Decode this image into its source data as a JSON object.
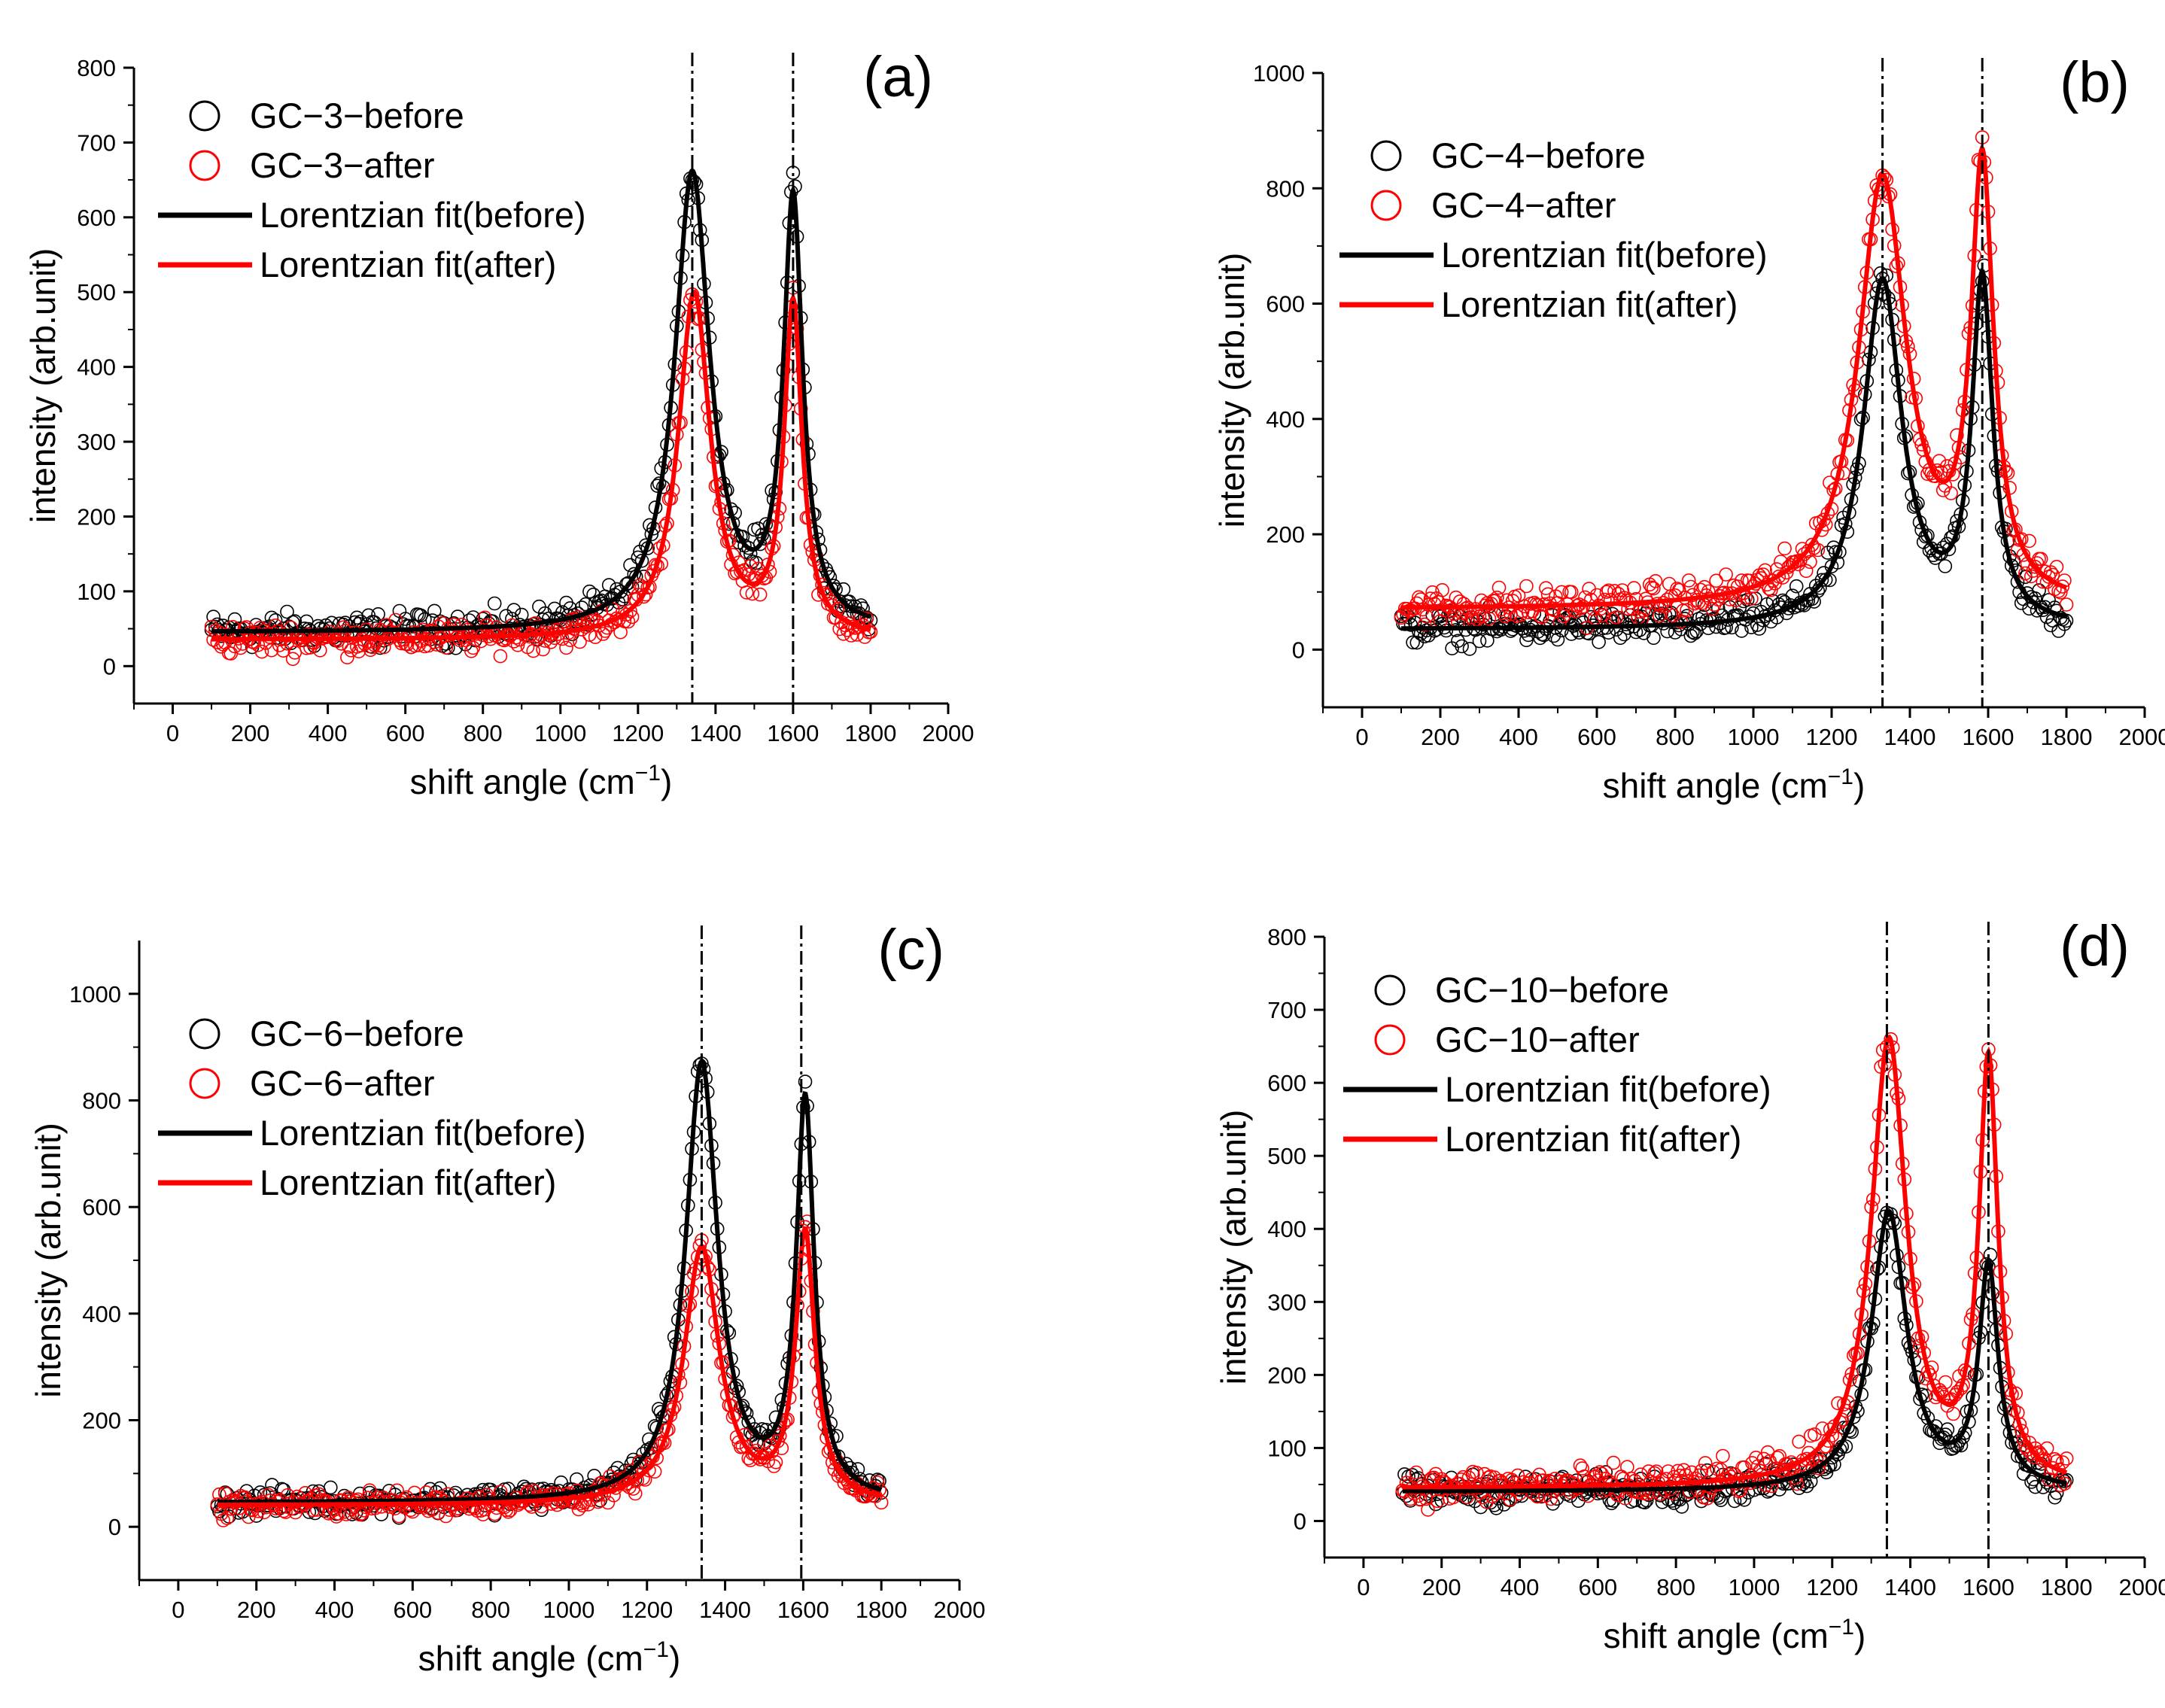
{
  "figure": {
    "colors": {
      "before": "#000000",
      "after": "#ff0000"
    },
    "icons": {
      "marker": "open-circle-icon",
      "fit": "line-icon"
    }
  },
  "chart_data": [
    {
      "type": "scatter",
      "panel_label": "(a)",
      "xlabel": "shift angle (cm",
      "xlabel_sup": "−1",
      "xlabel_close": ")",
      "ylabel": "intensity (arb.unit)",
      "xlim": [
        -100,
        2000
      ],
      "ylim": [
        -50,
        800
      ],
      "xticks": [
        0,
        200,
        400,
        600,
        800,
        1000,
        1200,
        1400,
        1600,
        1800,
        2000
      ],
      "yticks": [
        0,
        100,
        200,
        300,
        400,
        500,
        600,
        700,
        800
      ],
      "xtick_labels": [
        "0",
        "200",
        "400",
        "600",
        "800",
        "1000",
        "1200",
        "1400",
        "1600",
        "1800",
        "2000"
      ],
      "ytick_labels": [
        "0",
        "100",
        "200",
        "300",
        "400",
        "500",
        "600",
        "700",
        "800"
      ],
      "reference_lines": [
        1340,
        1600
      ],
      "legend": [
        "GC−3−before",
        "GC−3−after",
        "Lorentzian fit(before)",
        "Lorentzian fit(after)"
      ],
      "legend_position": "top-left",
      "series": [
        {
          "name": "GC-3-before",
          "kind": "data",
          "color": "#000000",
          "baseline": 45,
          "peaks": [
            [
              1340,
              610,
              55
            ],
            [
              1600,
              565,
              30
            ]
          ],
          "slope": 0,
          "noise": 20
        },
        {
          "name": "GC-3-after",
          "kind": "data",
          "color": "#ff0000",
          "baseline": 35,
          "peaks": [
            [
              1345,
              460,
              50
            ],
            [
              1600,
              440,
              28
            ]
          ],
          "slope": 0,
          "noise": 18
        },
        {
          "name": "Lorentzian fit(before)",
          "kind": "fit",
          "color": "#000000",
          "baseline": 45,
          "peaks": [
            [
              1340,
              610,
              55
            ],
            [
              1600,
              565,
              30
            ]
          ],
          "slope": 0
        },
        {
          "name": "Lorentzian fit(after)",
          "kind": "fit",
          "color": "#ff0000",
          "baseline": 35,
          "peaks": [
            [
              1345,
              460,
              50
            ],
            [
              1600,
              440,
              28
            ]
          ],
          "slope": 0
        }
      ]
    },
    {
      "type": "scatter",
      "panel_label": "(b)",
      "xlabel": "shift angle (cm",
      "xlabel_sup": "−1",
      "xlabel_close": ")",
      "ylabel": "intensity (arb.unit)",
      "xlim": [
        -100,
        2000
      ],
      "ylim": [
        -100,
        1000
      ],
      "xticks": [
        0,
        200,
        400,
        600,
        800,
        1000,
        1200,
        1400,
        1600,
        1800,
        2000
      ],
      "yticks": [
        0,
        200,
        400,
        600,
        800,
        1000
      ],
      "xtick_labels": [
        "0",
        "200",
        "400",
        "600",
        "800",
        "1000",
        "1200",
        "1400",
        "1600",
        "1800",
        "2000"
      ],
      "ytick_labels": [
        "0",
        "200",
        "400",
        "600",
        "800",
        "1000"
      ],
      "reference_lines": [
        1330,
        1585
      ],
      "legend": [
        "GC−4−before",
        "GC−4−after",
        "Lorentzian fit(before)",
        "Lorentzian fit(after)"
      ],
      "legend_position": "top-left",
      "series": [
        {
          "name": "GC-4-before",
          "kind": "data",
          "color": "#000000",
          "baseline": 35,
          "peaks": [
            [
              1330,
              600,
              60
            ],
            [
              1585,
              590,
              32
            ]
          ],
          "slope": 0,
          "noise": 25
        },
        {
          "name": "GC-4-after",
          "kind": "data",
          "color": "#ff0000",
          "baseline": 70,
          "peaks": [
            [
              1330,
              740,
              75
            ],
            [
              1585,
              740,
              35
            ]
          ],
          "slope": 0,
          "noise": 28
        },
        {
          "name": "Lorentzian fit(before)",
          "kind": "fit",
          "color": "#000000",
          "baseline": 35,
          "peaks": [
            [
              1330,
              600,
              60
            ],
            [
              1585,
              590,
              32
            ]
          ],
          "slope": 0
        },
        {
          "name": "Lorentzian fit(after)",
          "kind": "fit",
          "color": "#ff0000",
          "baseline": 70,
          "peaks": [
            [
              1330,
              740,
              75
            ],
            [
              1585,
              740,
              35
            ]
          ],
          "slope": 0
        }
      ]
    },
    {
      "type": "scatter",
      "panel_label": "(c)",
      "xlabel": "shift angle (cm",
      "xlabel_sup": "−1",
      "xlabel_close": ")",
      "ylabel": "intensity (arb.unit)",
      "xlim": [
        -100,
        2000
      ],
      "ylim": [
        -100,
        1100
      ],
      "xticks": [
        0,
        200,
        400,
        600,
        800,
        1000,
        1200,
        1400,
        1600,
        1800,
        2000
      ],
      "yticks": [
        0,
        200,
        400,
        600,
        800,
        1000
      ],
      "xtick_labels": [
        "0",
        "200",
        "400",
        "600",
        "800",
        "1000",
        "1200",
        "1400",
        "1600",
        "1800",
        "2000"
      ],
      "ytick_labels": [
        "0",
        "200",
        "400",
        "600",
        "800",
        "1000"
      ],
      "reference_lines": [
        1340,
        1595
      ],
      "legend": [
        "GC−6−before",
        "GC−6−after",
        "Lorentzian fit(before)",
        "Lorentzian fit(after)"
      ],
      "legend_position": "top-left",
      "series": [
        {
          "name": "GC-6-before",
          "kind": "data",
          "color": "#000000",
          "baseline": 45,
          "peaks": [
            [
              1340,
              820,
              50
            ],
            [
              1605,
              740,
              28
            ]
          ],
          "slope": 0,
          "noise": 22
        },
        {
          "name": "GC-6-after",
          "kind": "data",
          "color": "#ff0000",
          "baseline": 40,
          "peaks": [
            [
              1340,
              480,
              55
            ],
            [
              1605,
              500,
              30
            ]
          ],
          "slope": 0,
          "noise": 20
        },
        {
          "name": "Lorentzian fit(before)",
          "kind": "fit",
          "color": "#000000",
          "baseline": 45,
          "peaks": [
            [
              1340,
              820,
              50
            ],
            [
              1605,
              740,
              28
            ]
          ],
          "slope": 0
        },
        {
          "name": "Lorentzian fit(after)",
          "kind": "fit",
          "color": "#ff0000",
          "baseline": 40,
          "peaks": [
            [
              1340,
              480,
              55
            ],
            [
              1605,
              500,
              30
            ]
          ],
          "slope": 0
        }
      ]
    },
    {
      "type": "scatter",
      "panel_label": "(d)",
      "xlabel": "shift angle (cm",
      "xlabel_sup": "−1",
      "xlabel_close": ")",
      "ylabel": "intensity (arb.unit)",
      "xlim": [
        -100,
        2000
      ],
      "ylim": [
        -50,
        800
      ],
      "xticks": [
        0,
        200,
        400,
        600,
        800,
        1000,
        1200,
        1400,
        1600,
        1800,
        2000
      ],
      "yticks": [
        0,
        100,
        200,
        300,
        400,
        500,
        600,
        700,
        800
      ],
      "xtick_labels": [
        "0",
        "200",
        "400",
        "600",
        "800",
        "1000",
        "1200",
        "1400",
        "1600",
        "1800",
        "2000"
      ],
      "ytick_labels": [
        "0",
        "100",
        "200",
        "300",
        "400",
        "500",
        "600",
        "700",
        "800"
      ],
      "reference_lines": [
        1340,
        1600
      ],
      "legend": [
        "GC−10−before",
        "GC−10−after",
        "Lorentzian fit(before)",
        "Lorentzian fit(after)"
      ],
      "legend_position": "top-left",
      "series": [
        {
          "name": "GC-10-before",
          "kind": "data",
          "color": "#000000",
          "baseline": 40,
          "peaks": [
            [
              1345,
              380,
              55
            ],
            [
              1600,
              300,
              30
            ]
          ],
          "slope": 0,
          "noise": 18
        },
        {
          "name": "GC-10-after",
          "kind": "data",
          "color": "#ff0000",
          "baseline": 45,
          "peaks": [
            [
              1345,
              610,
              55
            ],
            [
              1600,
              570,
              30
            ]
          ],
          "slope": 0,
          "noise": 22
        },
        {
          "name": "Lorentzian fit(before)",
          "kind": "fit",
          "color": "#000000",
          "baseline": 40,
          "peaks": [
            [
              1345,
              380,
              55
            ],
            [
              1600,
              300,
              30
            ]
          ],
          "slope": 0
        },
        {
          "name": "Lorentzian fit(after)",
          "kind": "fit",
          "color": "#ff0000",
          "baseline": 45,
          "peaks": [
            [
              1345,
              610,
              55
            ],
            [
              1600,
              570,
              30
            ]
          ],
          "slope": 0
        }
      ]
    }
  ]
}
